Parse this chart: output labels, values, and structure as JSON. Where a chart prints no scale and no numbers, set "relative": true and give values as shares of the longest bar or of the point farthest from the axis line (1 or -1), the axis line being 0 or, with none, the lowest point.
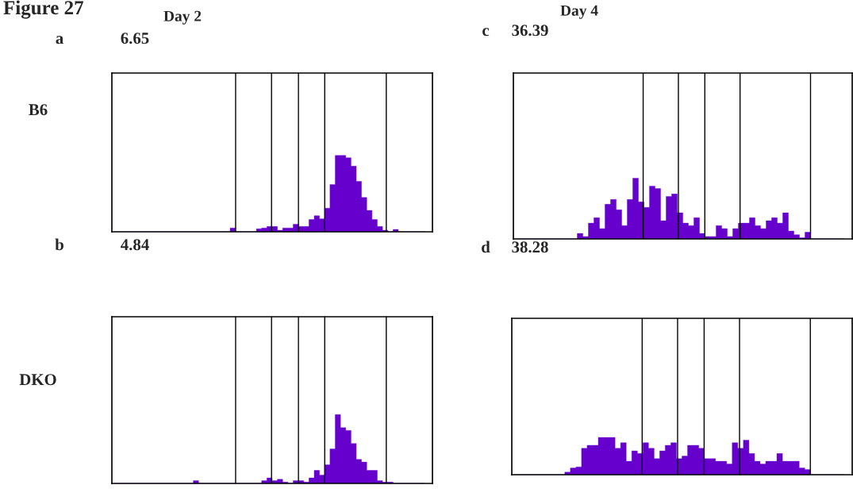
{
  "chart_data": [
    {
      "type": "area",
      "grid": "x",
      "title": "Day 2",
      "ylabel": "B6",
      "annotations": [
        "Figure 27",
        "a",
        "6.65"
      ],
      "relative": true,
      "color": "#6600cc",
      "categories": [
        null,
        null,
        null,
        null,
        null,
        null,
        null,
        null,
        null,
        null,
        null,
        null,
        null,
        null,
        null,
        null,
        null,
        null,
        null,
        null,
        null,
        null,
        null,
        null,
        null,
        null,
        null,
        null,
        null,
        null,
        null,
        null,
        null,
        null,
        null,
        null,
        null,
        null,
        null,
        null,
        null,
        null,
        null,
        null,
        null,
        null,
        null,
        null,
        null,
        null,
        null,
        null,
        null,
        null,
        null,
        null,
        null,
        null,
        null,
        null
      ],
      "values": [
        0,
        0,
        0,
        0,
        0,
        0,
        0,
        0,
        0,
        0,
        0,
        0,
        0,
        0,
        0,
        0,
        0,
        0,
        0,
        0,
        0,
        0,
        0.05,
        0,
        0,
        0,
        0,
        0.04,
        0.05,
        0.07,
        0.07,
        0.02,
        0.05,
        0.05,
        0.1,
        0.07,
        0.07,
        0.16,
        0.21,
        0.17,
        0.31,
        0.62,
        1,
        1,
        0.97,
        0.86,
        0.66,
        0.45,
        0.28,
        0.16,
        0.07,
        0.02,
        0,
        0.03,
        0,
        0,
        0,
        0,
        0,
        0
      ]
    },
    {
      "type": "area",
      "grid": "x",
      "title": "Day 4",
      "annotations": [
        "c",
        "36.39"
      ],
      "relative": true,
      "color": "#6600cc",
      "categories": [
        null,
        null,
        null,
        null,
        null,
        null,
        null,
        null,
        null,
        null,
        null,
        null,
        null,
        null,
        null,
        null,
        null,
        null,
        null,
        null,
        null,
        null,
        null,
        null,
        null,
        null,
        null,
        null,
        null,
        null,
        null,
        null,
        null,
        null,
        null,
        null,
        null,
        null,
        null,
        null,
        null,
        null,
        null,
        null,
        null,
        null,
        null,
        null,
        null,
        null,
        null,
        null,
        null,
        null,
        null,
        null,
        null,
        null,
        null,
        null
      ],
      "values": [
        0,
        0,
        0,
        0,
        0,
        0,
        0,
        0,
        0,
        0,
        0,
        0.09,
        0.04,
        0.26,
        0.35,
        0.17,
        0.57,
        0.65,
        0.48,
        0.22,
        0.65,
        1,
        0.61,
        0.52,
        0.87,
        0.83,
        0.3,
        0.7,
        0.74,
        0.43,
        0.26,
        0.22,
        0.35,
        0.09,
        0.04,
        0.04,
        0.22,
        0.17,
        0.04,
        0.17,
        0.26,
        0.26,
        0.35,
        0.22,
        0.17,
        0.3,
        0.35,
        0.26,
        0.43,
        0.13,
        0.07,
        0.02,
        0.11,
        0,
        0,
        0,
        0,
        0,
        0,
        0
      ]
    },
    {
      "type": "area",
      "grid": "x",
      "ylabel": "DKO",
      "annotations": [
        "b",
        "4.84"
      ],
      "relative": true,
      "color": "#6600cc",
      "categories": [
        null,
        null,
        null,
        null,
        null,
        null,
        null,
        null,
        null,
        null,
        null,
        null,
        null,
        null,
        null,
        null,
        null,
        null,
        null,
        null,
        null,
        null,
        null,
        null,
        null,
        null,
        null,
        null,
        null,
        null,
        null,
        null,
        null,
        null,
        null,
        null,
        null,
        null,
        null,
        null,
        null,
        null,
        null,
        null,
        null,
        null,
        null,
        null,
        null,
        null,
        null,
        null,
        null,
        null,
        null,
        null,
        null,
        null,
        null,
        null
      ],
      "values": [
        0,
        0,
        0,
        0,
        0,
        0,
        0,
        0,
        0,
        0,
        0,
        0,
        0,
        0,
        0,
        0.04,
        0,
        0,
        0,
        0,
        0,
        0,
        0,
        0,
        0,
        0,
        0,
        0,
        0.04,
        0.08,
        0.04,
        0.06,
        0.02,
        0,
        0.04,
        0.04,
        0.02,
        0.08,
        0.19,
        0.12,
        0.27,
        0.5,
        1,
        0.81,
        0.77,
        0.58,
        0.35,
        0.31,
        0.19,
        0.19,
        0.04,
        0.02,
        0.02,
        0,
        0,
        0,
        0,
        0,
        0,
        0
      ]
    },
    {
      "type": "area",
      "grid": "x",
      "annotations": [
        "d",
        "38.28"
      ],
      "relative": true,
      "color": "#6600cc",
      "categories": [
        null,
        null,
        null,
        null,
        null,
        null,
        null,
        null,
        null,
        null,
        null,
        null,
        null,
        null,
        null,
        null,
        null,
        null,
        null,
        null,
        null,
        null,
        null,
        null,
        null,
        null,
        null,
        null,
        null,
        null,
        null,
        null,
        null,
        null,
        null,
        null,
        null,
        null,
        null,
        null,
        null,
        null,
        null,
        null,
        null,
        null,
        null,
        null,
        null,
        null,
        null,
        null,
        null,
        null,
        null,
        null,
        null,
        null,
        null,
        null
      ],
      "values": [
        0,
        0,
        0,
        0,
        0,
        0,
        0,
        0,
        0,
        0.07,
        0.18,
        0.21,
        0.71,
        0.79,
        0.79,
        1,
        1,
        1,
        0.71,
        0.86,
        0.36,
        0.64,
        0.57,
        0.86,
        0.71,
        0.43,
        0.64,
        0.79,
        0.86,
        0.43,
        0.5,
        0.79,
        0.79,
        0.71,
        0.43,
        0.43,
        0.36,
        0.36,
        0.29,
        0.86,
        0.71,
        0.93,
        0.57,
        0.36,
        0.29,
        0.36,
        0.36,
        0.57,
        0.36,
        0.36,
        0.36,
        0.18,
        0.14,
        0,
        0,
        0,
        0,
        0,
        0,
        0
      ]
    }
  ]
}
